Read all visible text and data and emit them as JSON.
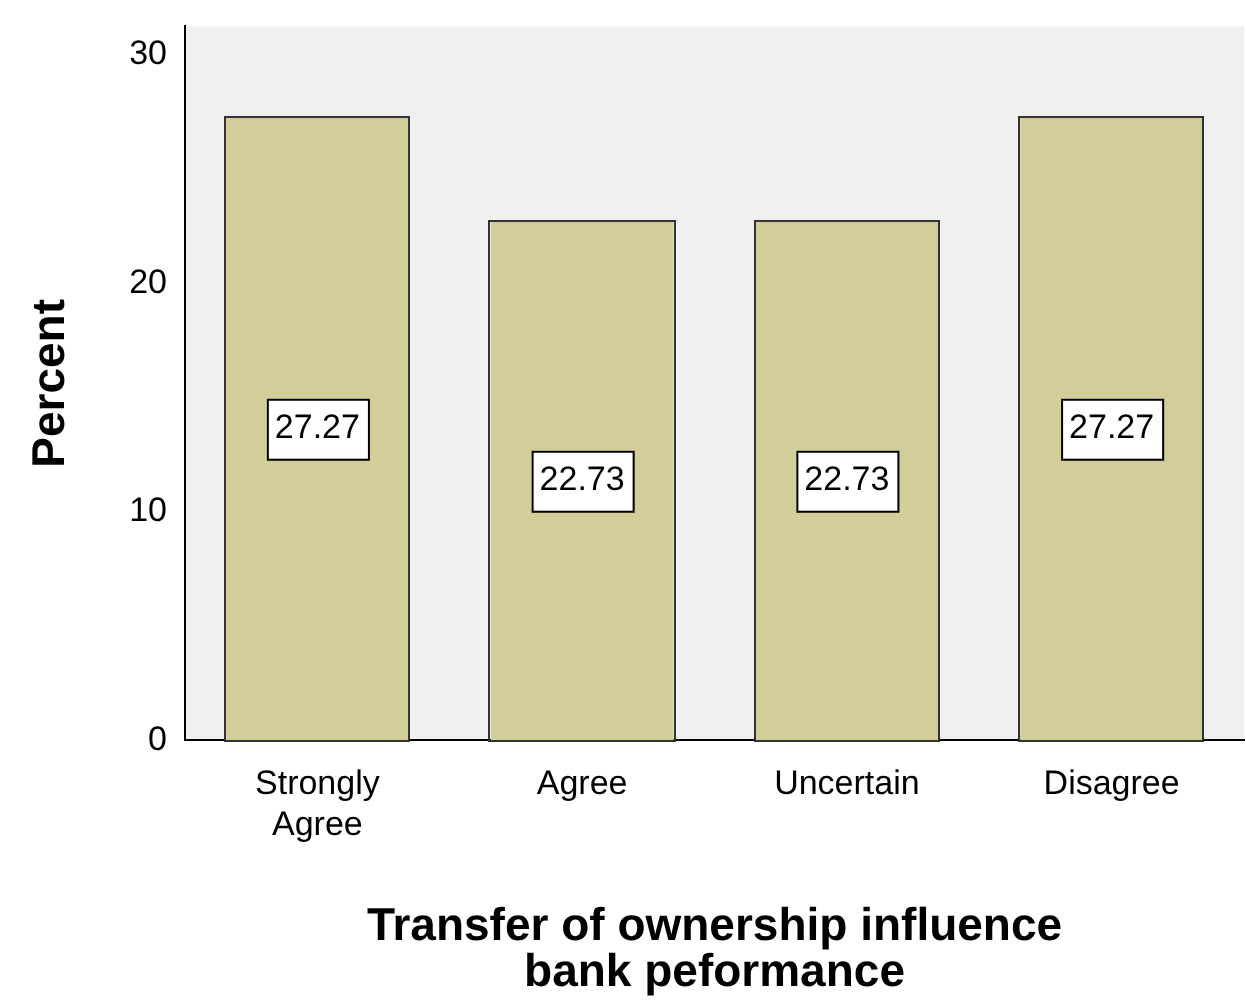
{
  "chart_data": {
    "type": "bar",
    "xlabel": "Transfer of ownership influence bank peformance",
    "ylabel": "Percent",
    "categories": [
      "Strongly Agree",
      "Agree",
      "Uncertain",
      "Disagree"
    ],
    "values": [
      27.27,
      22.73,
      22.73,
      27.27
    ],
    "color": "#d3ce99",
    "ylim": [
      0,
      31.25
    ],
    "yticks": [
      0,
      10,
      20,
      30
    ],
    "grid": false,
    "data_labels": true,
    "legend": false
  }
}
